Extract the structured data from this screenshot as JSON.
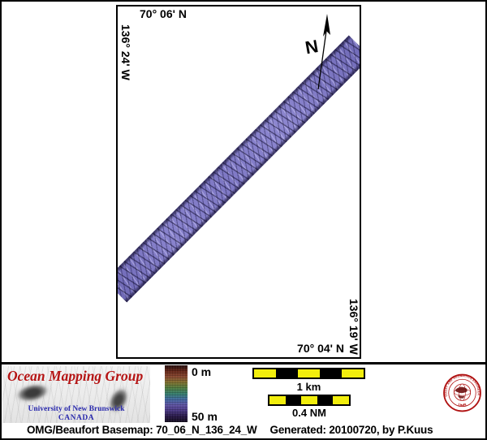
{
  "map": {
    "top_label": "70° 06' N",
    "left_label": "136° 24' W",
    "right_label": "136° 19' W",
    "bottom_label": "70° 04' N",
    "north_label": "N"
  },
  "colorbar": {
    "top_label": "0 m",
    "bottom_label": "50 m",
    "gradient": [
      "#1d0503",
      "#5e1e10",
      "#84422a",
      "#7c6b28",
      "#49773a",
      "#2f7a68",
      "#3b639c",
      "#5a4da0",
      "#42307c",
      "#201040",
      "#0d0618"
    ]
  },
  "scalebars": {
    "km_label": "1 km",
    "nm_label": "0.4 NM",
    "pattern": [
      "#f2ee0d",
      "#000000",
      "#f2ee0d",
      "#000000",
      "#f2ee0d"
    ]
  },
  "logo": {
    "title": "Ocean Mapping Group",
    "university": "University of New Brunswick",
    "country": "CANADA"
  },
  "seal": {
    "ring_text": "GEODESY AND GEOMATICS ENGINEERING",
    "bottom_text": "UNB"
  },
  "caption": {
    "basemap": "OMG/Beaufort Basemap: 70_06_N_136_24_W",
    "generated": "Generated: 20100720, by P.Kuus"
  },
  "colors": {
    "swath_base": "#7d78c3",
    "scalebar_yellow": "#f2ee0d",
    "logo_title_red": "#b51414",
    "logo_text_blue": "#2a2aad",
    "seal_red": "#b01212",
    "frame_black": "#000000"
  }
}
